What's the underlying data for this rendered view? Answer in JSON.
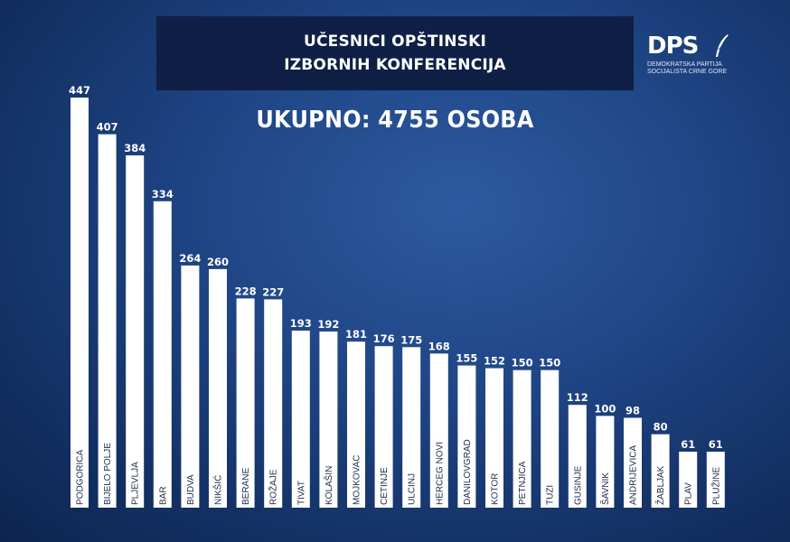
{
  "header": {
    "title_line1": "UČESNICI OPŠTINSKI",
    "title_line2": "IZBORNIH KONFERENCIJA"
  },
  "logo": {
    "name": "DPS",
    "subtitle_line1": "DEMOKRATSKA PARTIJA",
    "subtitle_line2": "SOCIJALISTA CRNE GORE"
  },
  "total_label": "UKUPNO: 4755 OSOBA",
  "colors": {
    "background": "#1f4585",
    "title_box": "#0f1f45",
    "bar": "#ffffff",
    "text": "#ffffff",
    "category_text": "#1a2a4a"
  },
  "chart_data": {
    "type": "bar",
    "orientation": "vertical",
    "categories": [
      "PODGORICA",
      "BIJELO POLJE",
      "PLJEVLJA",
      "BAR",
      "BUDVA",
      "NIKŠIĆ",
      "BERANE",
      "ROŽAJE",
      "TIVAT",
      "KOLAŠIN",
      "MOJKOVAC",
      "CETINJE",
      "ULCINJ",
      "HERCEG NOVI",
      "DANILOVGRAD",
      "KOTOR",
      "PETNJICA",
      "TUZI",
      "GUSINJE",
      "ŠAVNIK",
      "ANDRIJEVICA",
      "ŽABLJAK",
      "PLAV",
      "PLUŽINE"
    ],
    "values": [
      447,
      407,
      384,
      334,
      264,
      260,
      228,
      227,
      193,
      192,
      181,
      176,
      175,
      168,
      155,
      152,
      150,
      150,
      112,
      100,
      98,
      80,
      61,
      61
    ],
    "data_labels": true,
    "category_labels_inside_bars": true,
    "grid": false,
    "legend": "none"
  }
}
